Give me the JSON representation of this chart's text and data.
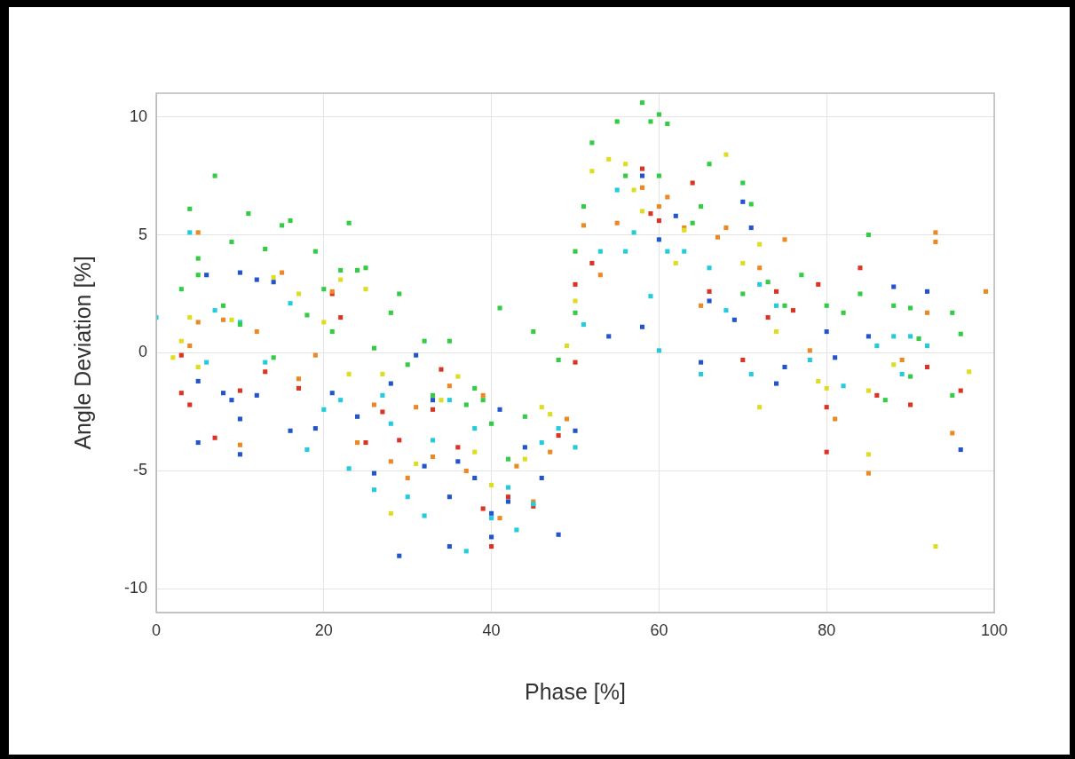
{
  "chart_data": {
    "type": "scatter",
    "xlabel": "Phase [%]",
    "ylabel": "Angle Deviation [%]",
    "xlim": [
      0,
      100
    ],
    "xticks": [
      0,
      20,
      40,
      60,
      80,
      100
    ],
    "ylim": [
      -11,
      11
    ],
    "yticks": [
      -10,
      -5,
      0,
      5,
      10
    ],
    "grid": true,
    "legend": false,
    "marker": "square",
    "series": [
      {
        "color": "#33cc44",
        "x": [
          4,
          7,
          11,
          15,
          16,
          19,
          23,
          5,
          5,
          9,
          13,
          20,
          22,
          24,
          25,
          28,
          29,
          32,
          35,
          38,
          39,
          40,
          41,
          42,
          44,
          45,
          48,
          50,
          50,
          51,
          52,
          55,
          58,
          59,
          60,
          61,
          56,
          60,
          64,
          66,
          70,
          71,
          65,
          70,
          73,
          75,
          77,
          80,
          82,
          85,
          84,
          88,
          90,
          91,
          95,
          96,
          87,
          90,
          95,
          30,
          33,
          37,
          26,
          18,
          14,
          8,
          3,
          10,
          21
        ],
        "values": [
          6.1,
          7.5,
          5.9,
          5.4,
          5.6,
          4.3,
          5.5,
          3.3,
          4.0,
          4.7,
          4.4,
          2.7,
          3.5,
          3.5,
          3.6,
          1.7,
          2.5,
          0.5,
          0.5,
          -1.5,
          -2,
          -3,
          1.9,
          -4.5,
          -2.7,
          0.9,
          -0.3,
          4.3,
          1.7,
          6.2,
          8.9,
          9.8,
          10.6,
          9.8,
          10.1,
          9.7,
          7.5,
          7.5,
          5.5,
          8.0,
          7.2,
          6.3,
          6.2,
          2.5,
          3.0,
          2.0,
          3.3,
          2.0,
          1.7,
          5.0,
          2.5,
          2.0,
          1.9,
          0.6,
          1.7,
          0.8,
          -2.0,
          -1.0,
          -1.8,
          -0.5,
          -1.8,
          -2.2,
          0.2,
          1.6,
          -0.2,
          2.0,
          2.7,
          1.2,
          0.9
        ]
      },
      {
        "color": "#22ccdd",
        "x": [
          0,
          4,
          7,
          10,
          16,
          18,
          22,
          23,
          26,
          30,
          32,
          37,
          40,
          43,
          45,
          48,
          50,
          51,
          55,
          56,
          57,
          59,
          60,
          61,
          63,
          65,
          68,
          71,
          74,
          78,
          82,
          86,
          88,
          90,
          92,
          89,
          38,
          35,
          28,
          20,
          13,
          6,
          42,
          46,
          33,
          27,
          53,
          66,
          72
        ],
        "values": [
          1.5,
          5.1,
          1.8,
          1.3,
          2.1,
          -4.1,
          -2.0,
          -4.9,
          -5.8,
          -6.1,
          -6.9,
          -8.4,
          -7.0,
          -7.5,
          -6.4,
          -3.2,
          -4.0,
          1.2,
          6.9,
          4.3,
          5.1,
          2.4,
          0.1,
          4.3,
          4.3,
          -0.9,
          1.8,
          -0.9,
          2.0,
          -0.3,
          -1.4,
          0.3,
          0.7,
          0.7,
          0.3,
          -0.9,
          -3.2,
          -2.0,
          -3.0,
          -2.4,
          -0.4,
          -0.4,
          -5.7,
          -3.8,
          -3.7,
          -1.8,
          4.3,
          3.6,
          2.9
        ]
      },
      {
        "color": "#2255cc",
        "x": [
          5,
          5,
          6,
          9,
          10,
          10,
          10,
          12,
          14,
          16,
          19,
          21,
          26,
          29,
          31,
          32,
          35,
          35,
          36,
          38,
          40,
          40,
          41,
          42,
          44,
          46,
          48,
          50,
          54,
          58,
          58,
          60,
          62,
          66,
          70,
          71,
          74,
          80,
          81,
          85,
          88,
          92,
          96,
          33,
          28,
          24,
          12,
          8,
          65,
          75,
          69
        ],
        "values": [
          -1.2,
          -3.8,
          3.3,
          -2.0,
          -2.8,
          -4.3,
          3.4,
          3.1,
          3.0,
          -3.3,
          -3.2,
          -1.7,
          -5.1,
          -8.6,
          -0.1,
          -4.8,
          -8.2,
          -6.1,
          -4.6,
          -5.3,
          -6.8,
          -7.8,
          -2.4,
          -6.3,
          -4.0,
          -5.3,
          -7.7,
          -3.3,
          0.7,
          1.1,
          7.5,
          4.8,
          5.8,
          2.2,
          6.4,
          5.3,
          -1.3,
          0.9,
          -0.2,
          0.7,
          2.8,
          2.6,
          -4.1,
          -2.0,
          -1.3,
          -2.7,
          -1.8,
          -1.7,
          -0.4,
          -0.6,
          1.4
        ]
      },
      {
        "color": "#dddd22",
        "x": [
          2,
          3,
          4,
          5,
          9,
          14,
          17,
          20,
          22,
          25,
          27,
          28,
          31,
          34,
          38,
          40,
          44,
          47,
          49,
          50,
          52,
          54,
          56,
          57,
          58,
          63,
          68,
          70,
          72,
          72,
          74,
          79,
          80,
          85,
          85,
          88,
          93,
          97,
          23,
          36,
          46,
          62
        ],
        "values": [
          -0.2,
          0.5,
          1.5,
          -0.6,
          1.4,
          3.2,
          2.5,
          1.3,
          3.1,
          2.7,
          -0.9,
          -6.8,
          -4.7,
          -2.0,
          -4.2,
          -5.6,
          -4.5,
          -2.6,
          0.3,
          2.2,
          7.7,
          8.2,
          8.0,
          6.9,
          6.0,
          5.2,
          8.4,
          3.8,
          -2.3,
          4.6,
          0.9,
          -1.2,
          -1.5,
          -4.3,
          -1.6,
          -0.5,
          -8.2,
          -0.8,
          -0.9,
          -1.0,
          -2.3,
          3.8
        ]
      },
      {
        "color": "#ee8822",
        "x": [
          4,
          5,
          5,
          8,
          12,
          15,
          17,
          19,
          21,
          24,
          26,
          28,
          30,
          33,
          35,
          37,
          39,
          41,
          43,
          45,
          47,
          49,
          51,
          53,
          55,
          58,
          60,
          63,
          65,
          67,
          68,
          72,
          75,
          78,
          81,
          85,
          89,
          92,
          93,
          93,
          95,
          99,
          10,
          31,
          61
        ],
        "values": [
          0.3,
          1.3,
          5.1,
          1.4,
          0.9,
          3.4,
          -1.1,
          -0.1,
          2.6,
          -3.8,
          -2.2,
          -4.6,
          -5.3,
          -4.4,
          -1.4,
          -5.0,
          -1.8,
          -7.0,
          -4.8,
          -6.3,
          -4.2,
          -2.8,
          5.4,
          3.3,
          5.5,
          7.0,
          6.2,
          5.3,
          2.0,
          4.9,
          5.3,
          3.6,
          4.8,
          0.1,
          -2.8,
          -5.1,
          -0.3,
          1.7,
          5.1,
          4.7,
          -3.4,
          2.6,
          -3.9,
          -2.3,
          6.6
        ]
      },
      {
        "color": "#dd3322",
        "x": [
          3,
          3,
          4,
          10,
          13,
          17,
          21,
          22,
          25,
          27,
          29,
          33,
          36,
          39,
          40,
          42,
          45,
          48,
          50,
          50,
          52,
          58,
          59,
          60,
          64,
          66,
          70,
          73,
          76,
          79,
          80,
          80,
          84,
          86,
          90,
          92,
          96,
          7,
          34,
          74
        ],
        "values": [
          -0.1,
          -1.7,
          -2.2,
          -1.6,
          -0.8,
          -1.5,
          2.5,
          1.5,
          -3.8,
          -2.5,
          -3.7,
          -2.4,
          -4.0,
          -6.6,
          -8.2,
          -6.1,
          -6.5,
          -3.5,
          -0.4,
          2.9,
          3.8,
          7.8,
          5.9,
          5.6,
          7.2,
          2.6,
          -0.3,
          1.5,
          1.8,
          2.9,
          -2.3,
          -4.2,
          3.6,
          -1.8,
          -2.2,
          -0.6,
          -1.6,
          -3.6,
          -0.7,
          2.6
        ]
      }
    ]
  }
}
